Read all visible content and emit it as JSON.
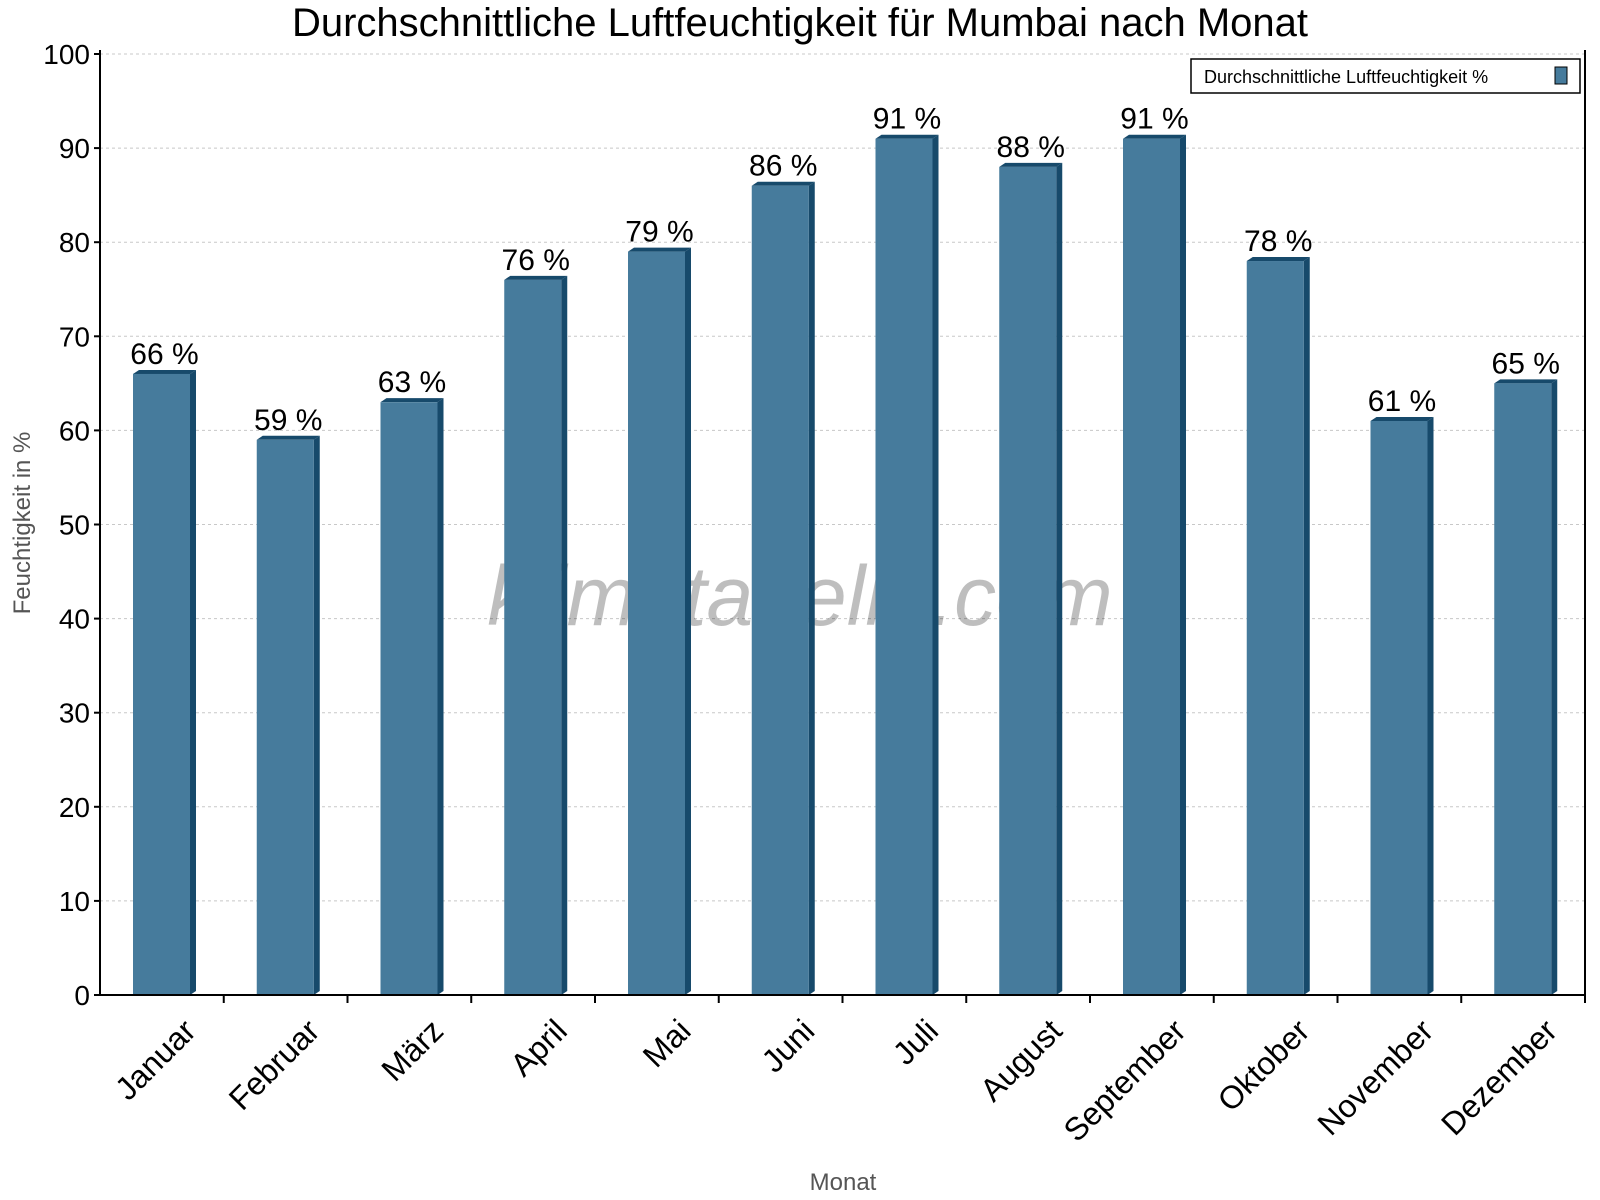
{
  "chart_data": {
    "type": "bar",
    "title": "Durchschnittliche Luftfeuchtigkeit für Mumbai nach Monat",
    "xlabel": "Monat",
    "ylabel": "Feuchtigkeit in %",
    "categories": [
      "Januar",
      "Februar",
      "März",
      "April",
      "Mai",
      "Juni",
      "Juli",
      "August",
      "September",
      "Oktober",
      "November",
      "Dezember"
    ],
    "series": [
      {
        "name": "Durchschnittliche Luftfeuchtigkeit %",
        "values": [
          66,
          59,
          63,
          76,
          79,
          86,
          91,
          88,
          91,
          78,
          61,
          65
        ],
        "color": "#467b9c",
        "side_color": "#174a6b"
      }
    ],
    "data_labels": [
      "66 %",
      "59 %",
      "63 %",
      "76 %",
      "79 %",
      "86 %",
      "91 %",
      "88 %",
      "91 %",
      "78 %",
      "61 %",
      "65 %"
    ],
    "ylim": [
      0,
      100
    ],
    "yticks": [
      0,
      10,
      20,
      30,
      40,
      50,
      60,
      70,
      80,
      90,
      100
    ],
    "grid": true,
    "legend_position": "top-right",
    "watermark": "klimatabelle.com"
  }
}
